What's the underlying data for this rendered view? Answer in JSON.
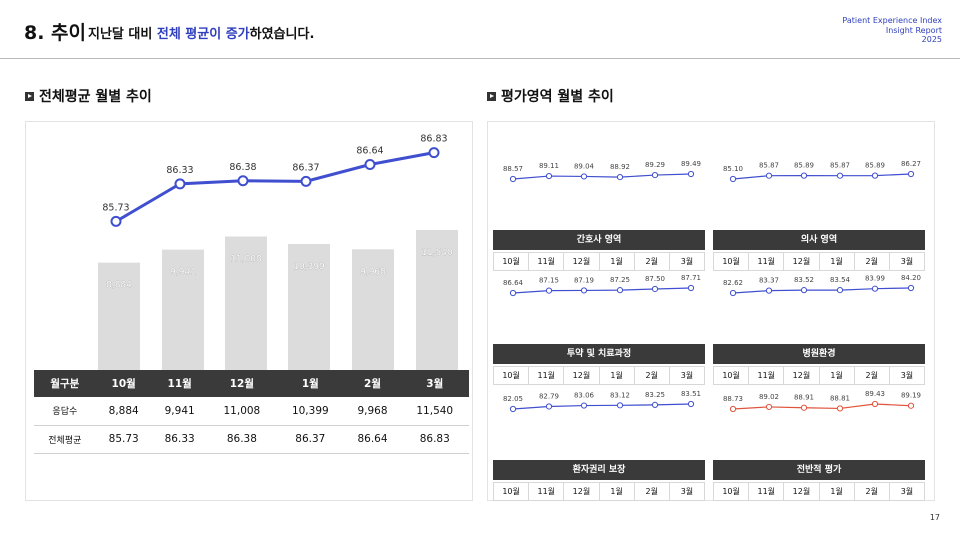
{
  "header": {
    "number": "8. 추이",
    "text_pre": "지난달 대비 ",
    "text_highlight": "전체 평균이 증가",
    "text_post": "하였습니다.",
    "right_line1": "Patient Experience Index",
    "right_line2": "Insight Report",
    "right_line3": "2025"
  },
  "left_section_title": "전체평균 월별 추이",
  "right_section_title": "평가영역 월별 추이",
  "table": {
    "headers": [
      "월구분",
      "10월",
      "11월",
      "12월",
      "1월",
      "2월",
      "3월"
    ],
    "rows": [
      {
        "label": "응답수",
        "values": [
          "8,884",
          "9,941",
          "11,008",
          "10,399",
          "9,968",
          "11,540"
        ]
      },
      {
        "label": "전체평균",
        "values": [
          "85.73",
          "86.33",
          "86.38",
          "86.37",
          "86.64",
          "86.83"
        ]
      }
    ]
  },
  "page_number": "17",
  "colors": {
    "line": "#3f4fcf",
    "bar": "#dcdcdc",
    "dark": "#3a3a3a",
    "red": "#e0533c"
  },
  "chart_data": [
    {
      "type": "bar+line",
      "categories": [
        "10월",
        "11월",
        "12월",
        "1월",
        "2월",
        "3월"
      ],
      "series": [
        {
          "name": "응답수",
          "type": "bar",
          "values": [
            8884,
            9941,
            11008,
            10399,
            9968,
            11540
          ],
          "labels": [
            "8,884",
            "9,941",
            "11,008",
            "10,399",
            "9,968",
            "11,540"
          ]
        },
        {
          "name": "전체평균",
          "type": "line",
          "values": [
            85.73,
            86.33,
            86.38,
            86.37,
            86.64,
            86.83
          ]
        }
      ]
    },
    {
      "type": "line",
      "title": "간호사 영역",
      "categories": [
        "10월",
        "11월",
        "12월",
        "1월",
        "2월",
        "3월"
      ],
      "values": [
        88.57,
        89.11,
        89.04,
        88.92,
        89.29,
        89.49
      ],
      "color": "#3f4fcf"
    },
    {
      "type": "line",
      "title": "의사 영역",
      "categories": [
        "10월",
        "11월",
        "12월",
        "1월",
        "2월",
        "3월"
      ],
      "values": [
        85.1,
        85.87,
        85.89,
        85.87,
        85.89,
        86.27
      ],
      "color": "#3f4fcf"
    },
    {
      "type": "line",
      "title": "투약 및 치료과정",
      "categories": [
        "10월",
        "11월",
        "12월",
        "1월",
        "2월",
        "3월"
      ],
      "values": [
        86.64,
        87.15,
        87.19,
        87.25,
        87.5,
        87.71
      ],
      "color": "#3f4fcf"
    },
    {
      "type": "line",
      "title": "병원환경",
      "categories": [
        "10월",
        "11월",
        "12월",
        "1월",
        "2월",
        "3월"
      ],
      "values": [
        82.62,
        83.37,
        83.52,
        83.54,
        83.99,
        84.2
      ],
      "color": "#3f4fcf"
    },
    {
      "type": "line",
      "title": "환자권리 보장",
      "categories": [
        "10월",
        "11월",
        "12월",
        "1월",
        "2월",
        "3월"
      ],
      "values": [
        82.05,
        82.79,
        83.06,
        83.12,
        83.25,
        83.51
      ],
      "color": "#3f4fcf"
    },
    {
      "type": "line",
      "title": "전반적 평가",
      "categories": [
        "10월",
        "11월",
        "12월",
        "1월",
        "2월",
        "3월"
      ],
      "values": [
        88.73,
        89.02,
        88.91,
        88.81,
        89.43,
        89.19
      ],
      "color": "#e0533c"
    }
  ]
}
